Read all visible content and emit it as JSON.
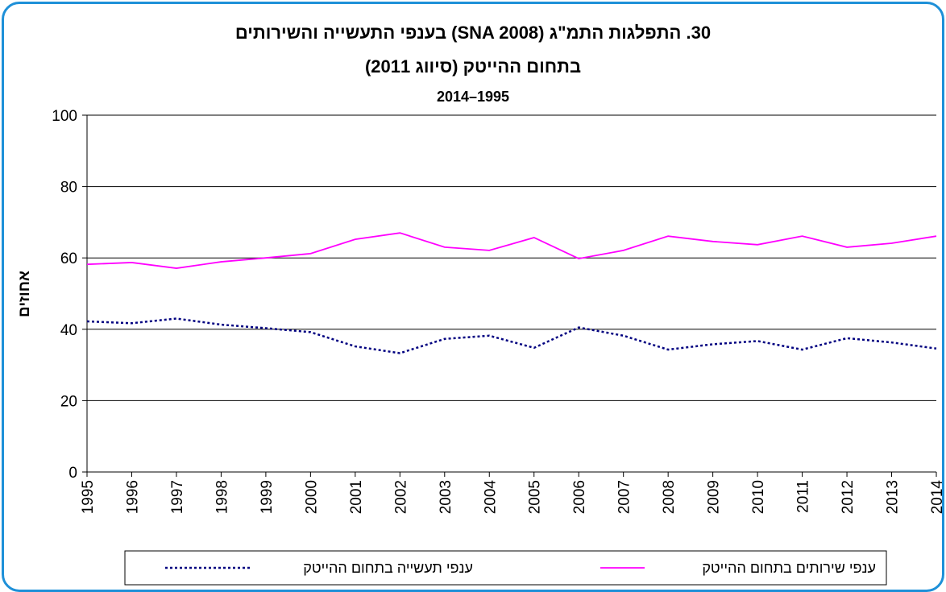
{
  "chart_data": {
    "type": "line",
    "title": "30. התפלגות התמ\"ג (SNA 2008) בענפי התעשייה והשירותים",
    "subtitle": "בתחום ההייטק (סיווג 2011)",
    "period": "2014–1995",
    "y_label": "אחוזים",
    "x": [
      1995,
      1996,
      1997,
      1998,
      1999,
      2000,
      2001,
      2002,
      2003,
      2004,
      2005,
      2006,
      2007,
      2008,
      2009,
      2010,
      2011,
      2012,
      2013,
      2014
    ],
    "xlim": [
      1995,
      2014
    ],
    "xticks": [
      1995,
      1996,
      1997,
      1998,
      1999,
      2000,
      2001,
      2002,
      2003,
      2004,
      2005,
      2006,
      2007,
      2008,
      2009,
      2010,
      2011,
      2012,
      2013,
      2014
    ],
    "ylim": [
      0,
      100
    ],
    "yticks": [
      0,
      20,
      40,
      60,
      80,
      100
    ],
    "grid": true,
    "legend": "bottom",
    "series": [
      {
        "name": "ענפי שירותים בתחום ההייטק",
        "color": "#ff00ff",
        "dash": false,
        "values": [
          58.2,
          58.7,
          57.1,
          58.9,
          60.0,
          61.2,
          65.2,
          67.0,
          63.0,
          62.1,
          65.7,
          59.8,
          62.1,
          66.1,
          64.6,
          63.7,
          66.1,
          63.0,
          64.1,
          66.1
        ]
      },
      {
        "name": "ענפי תעשייה בתחום ההייטק",
        "color": "#000080",
        "dash": true,
        "values": [
          42.2,
          41.7,
          43.0,
          41.3,
          40.3,
          39.2,
          35.2,
          33.3,
          37.3,
          38.2,
          34.8,
          40.5,
          38.2,
          34.3,
          35.8,
          36.7,
          34.3,
          37.5,
          36.3,
          34.6
        ]
      }
    ]
  }
}
